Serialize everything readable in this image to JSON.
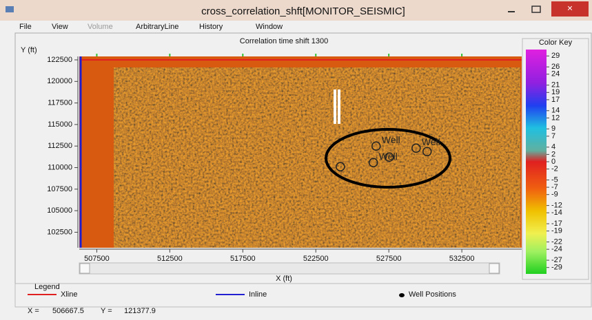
{
  "window": {
    "title": "cross_correlation_shft[MONITOR_SEISMIC]",
    "menu": [
      "File",
      "View",
      "Volume",
      "ArbitraryLine",
      "History",
      "Window"
    ]
  },
  "plot": {
    "title": "Correlation time shift 1300",
    "xlabel": "X (ft)",
    "ylabel": "Y (ft)",
    "xlim": [
      506300,
      536600
    ],
    "ylim": [
      100700,
      122900
    ],
    "xticks": [
      507500,
      512500,
      517500,
      522500,
      527500,
      532500
    ],
    "yticks": [
      122500,
      120000,
      117500,
      115000,
      112500,
      110000,
      107500,
      105000,
      102500
    ],
    "wells": [
      {
        "x": 524180,
        "y": 110100
      },
      {
        "x": 526630,
        "y": 112500,
        "label": "Well"
      },
      {
        "x": 526440,
        "y": 110580,
        "label": "Well"
      },
      {
        "x": 527530,
        "y": 111220
      },
      {
        "x": 529370,
        "y": 112260,
        "label": "Well"
      },
      {
        "x": 530120,
        "y": 111860
      }
    ]
  },
  "color_key": {
    "title": "Color Key",
    "lim": [
      -30,
      30
    ],
    "ticks": [
      29,
      26,
      24,
      21,
      19,
      17,
      14,
      12,
      9,
      7,
      4,
      2,
      0,
      -2,
      -5,
      -7,
      -9,
      -12,
      -14,
      -17,
      -19,
      -22,
      -24,
      -27,
      -29
    ]
  },
  "legend": {
    "title": "Legend",
    "items": [
      "Xline",
      "Inline",
      "Well Positions"
    ]
  },
  "status": {
    "x_label": "X =",
    "x": 506667.5,
    "y_label": "Y =",
    "y": 121377.9
  }
}
